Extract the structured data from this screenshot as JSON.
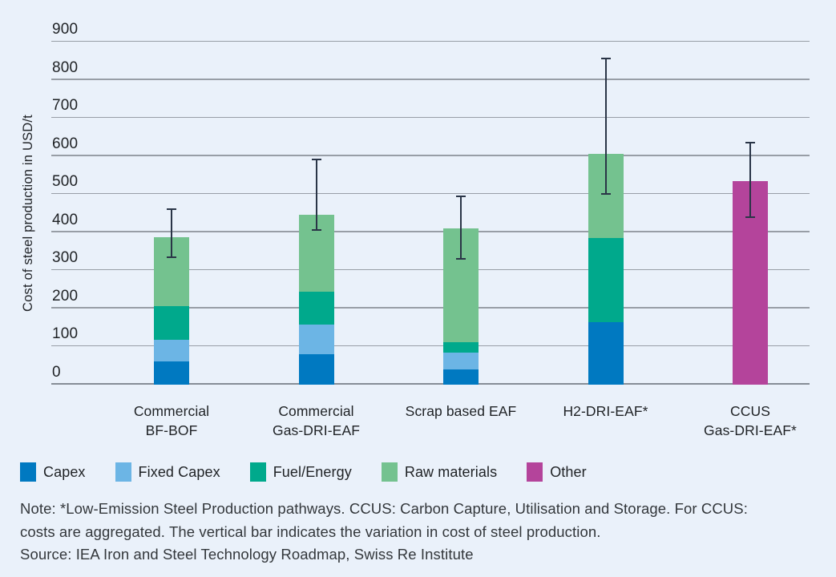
{
  "colors": {
    "background": "#eaf1fa",
    "gridline": "#989ea6",
    "axis_line": "#868d96",
    "error_bar": "#2a3547",
    "text": "#1f2225",
    "note_text": "#33373b",
    "capex": "#0079c1",
    "fixed_capex": "#6cb5e5",
    "fuel_energy": "#00a98c",
    "raw_materials": "#74c28f",
    "other": "#b4449b"
  },
  "chart_data": {
    "type": "bar",
    "stacked": true,
    "title": "",
    "xlabel": "",
    "ylabel": "Cost of steel production in USD/t",
    "ylim": [
      0,
      900
    ],
    "ytick_step": 100,
    "grid": true,
    "legend_position": "bottom",
    "categories": [
      "Commercial BF-BOF",
      "Commercial Gas-DRI-EAF",
      "Scrap based EAF",
      "H2-DRI-EAF*",
      "CCUS Gas-DRI-EAF*"
    ],
    "category_label_lines": [
      [
        "Commercial",
        "BF-BOF"
      ],
      [
        "Commercial",
        "Gas-DRI-EAF"
      ],
      [
        "Scrap based EAF"
      ],
      [
        "H2-DRI-EAF*"
      ],
      [
        "CCUS",
        "Gas-DRI-EAF*"
      ]
    ],
    "series": [
      {
        "name": "Capex",
        "color": "#0079c1",
        "values": [
          60,
          80,
          40,
          165,
          0
        ]
      },
      {
        "name": "Fixed Capex",
        "color": "#6cb5e5",
        "values": [
          57,
          78,
          45,
          0,
          0
        ]
      },
      {
        "name": "Fuel/Energy",
        "color": "#00a98c",
        "values": [
          90,
          87,
          27,
          220,
          0
        ]
      },
      {
        "name": "Raw materials",
        "color": "#74c28f",
        "values": [
          180,
          200,
          298,
          220,
          0
        ]
      },
      {
        "name": "Other",
        "color": "#b4449b",
        "values": [
          0,
          0,
          0,
          0,
          535
        ]
      }
    ],
    "totals": [
      387,
      445,
      410,
      605,
      535
    ],
    "error_bars": {
      "low": [
        335,
        405,
        330,
        500,
        440
      ],
      "high": [
        460,
        590,
        495,
        855,
        635
      ]
    }
  },
  "note": {
    "line1": "Note: *Low-Emission Steel Production pathways. CCUS: Carbon Capture, Utilisation and Storage. For CCUS:",
    "line2": "costs are aggregated. The vertical bar indicates the variation in cost of steel production.",
    "line3": "Source: IEA Iron and Steel Technology Roadmap, Swiss Re Institute"
  }
}
